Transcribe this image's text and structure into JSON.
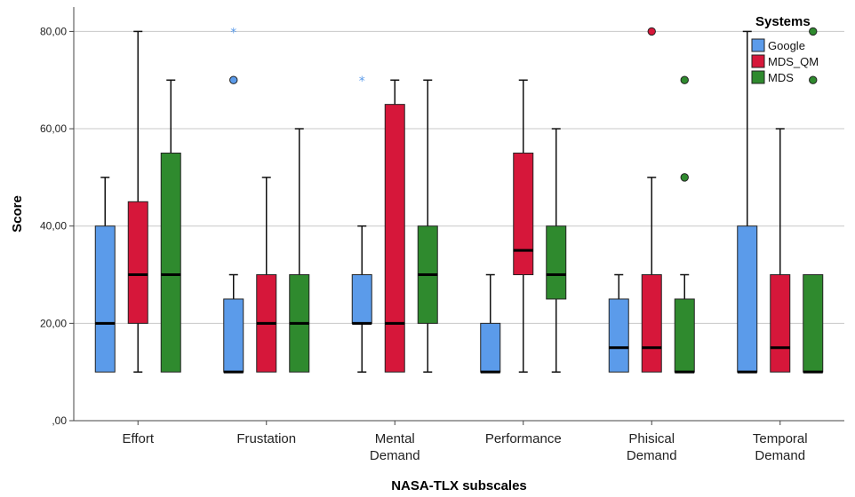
{
  "chart_data": {
    "type": "boxplot",
    "xlabel": "NASA-TLX subscales",
    "ylabel": "Score",
    "ylim": [
      0,
      85
    ],
    "yticks": [
      0,
      20,
      40,
      60,
      80
    ],
    "ytick_labels": [
      ",00",
      "20,00",
      "40,00",
      "60,00",
      "80,00"
    ],
    "grid": true,
    "legend": {
      "title": "Systems",
      "placement": "top-right"
    },
    "categories": [
      {
        "lines": [
          "Effort"
        ]
      },
      {
        "lines": [
          "Frustation"
        ]
      },
      {
        "lines": [
          "Mental",
          "Demand"
        ]
      },
      {
        "lines": [
          "Performance"
        ]
      },
      {
        "lines": [
          "Phisical",
          "Demand"
        ]
      },
      {
        "lines": [
          "Temporal",
          "Demand"
        ]
      }
    ],
    "series": [
      {
        "name": "Google",
        "color": "#5b9bea",
        "boxes": [
          {
            "min": 10,
            "q1": 10,
            "median": 20,
            "q3": 40,
            "max": 50,
            "outliers": [],
            "extremes": []
          },
          {
            "min": 10,
            "q1": 10,
            "median": 10,
            "q3": 25,
            "max": 30,
            "outliers": [
              70
            ],
            "extremes": [
              80
            ]
          },
          {
            "min": 10,
            "q1": 20,
            "median": 20,
            "q3": 30,
            "max": 40,
            "outliers": [],
            "extremes": [
              70
            ]
          },
          {
            "min": 10,
            "q1": 10,
            "median": 10,
            "q3": 20,
            "max": 30,
            "outliers": [],
            "extremes": []
          },
          {
            "min": 10,
            "q1": 10,
            "median": 15,
            "q3": 25,
            "max": 30,
            "outliers": [],
            "extremes": []
          },
          {
            "min": 10,
            "q1": 10,
            "median": 10,
            "q3": 40,
            "max": 80,
            "outliers": [],
            "extremes": []
          }
        ]
      },
      {
        "name": "MDS_QM",
        "color": "#d6173a",
        "boxes": [
          {
            "min": 10,
            "q1": 20,
            "median": 30,
            "q3": 45,
            "max": 80,
            "outliers": [],
            "extremes": []
          },
          {
            "min": 10,
            "q1": 10,
            "median": 20,
            "q3": 30,
            "max": 50,
            "outliers": [],
            "extremes": []
          },
          {
            "min": 10,
            "q1": 10,
            "median": 20,
            "q3": 65,
            "max": 70,
            "outliers": [],
            "extremes": []
          },
          {
            "min": 10,
            "q1": 30,
            "median": 35,
            "q3": 55,
            "max": 70,
            "outliers": [],
            "extremes": []
          },
          {
            "min": 10,
            "q1": 10,
            "median": 15,
            "q3": 30,
            "max": 50,
            "outliers": [
              80
            ],
            "extremes": []
          },
          {
            "min": 10,
            "q1": 10,
            "median": 15,
            "q3": 30,
            "max": 60,
            "outliers": [],
            "extremes": []
          }
        ]
      },
      {
        "name": "MDS",
        "color": "#2f8a2e",
        "boxes": [
          {
            "min": 10,
            "q1": 10,
            "median": 30,
            "q3": 55,
            "max": 70,
            "outliers": [],
            "extremes": []
          },
          {
            "min": 10,
            "q1": 10,
            "median": 20,
            "q3": 30,
            "max": 60,
            "outliers": [],
            "extremes": []
          },
          {
            "min": 10,
            "q1": 20,
            "median": 30,
            "q3": 40,
            "max": 70,
            "outliers": [],
            "extremes": []
          },
          {
            "min": 10,
            "q1": 25,
            "median": 30,
            "q3": 40,
            "max": 60,
            "outliers": [],
            "extremes": []
          },
          {
            "min": 10,
            "q1": 10,
            "median": 10,
            "q3": 25,
            "max": 30,
            "outliers": [
              50,
              70
            ],
            "extremes": []
          },
          {
            "min": 10,
            "q1": 10,
            "median": 10,
            "q3": 30,
            "max": 30,
            "outliers": [
              70,
              80
            ],
            "extremes": []
          }
        ]
      }
    ]
  }
}
